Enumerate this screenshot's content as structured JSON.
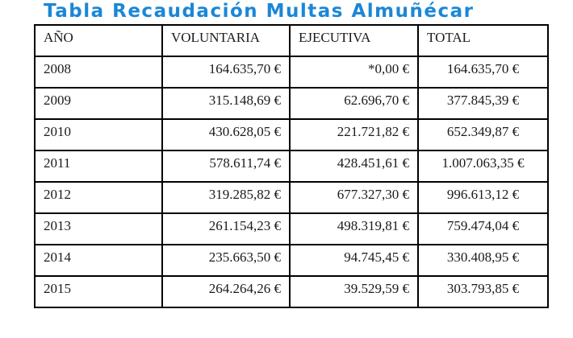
{
  "title_color": "#1b87d6",
  "page_title": "Tabla Recaudación Multas Almuñécar",
  "chart_data": {
    "type": "table",
    "title": "Tabla Recaudación Multas Almuñécar",
    "columns": [
      "AÑO",
      "VOLUNTARIA",
      "EJECUTIVA",
      "TOTAL"
    ],
    "rows": [
      [
        "2008",
        "164.635,70 €",
        "*0,00 €",
        "164.635,70 €"
      ],
      [
        "2009",
        "315.148,69 €",
        "62.696,70 €",
        "377.845,39 €"
      ],
      [
        "2010",
        "430.628,05 €",
        "221.721,82 €",
        "652.349,87 €"
      ],
      [
        "2011",
        "578.611,74 €",
        "428.451,61 €",
        "1.007.063,35 €"
      ],
      [
        "2012",
        "319.285,82 €",
        "677.327,30 €",
        "996.613,12 €"
      ],
      [
        "2013",
        "261.154,23 €",
        "498.319,81 €",
        "759.474,04 €"
      ],
      [
        "2014",
        "235.663,50 €",
        "94.745,45 €",
        "330.408,95 €"
      ],
      [
        "2015",
        "264.264,26 €",
        "39.529,59 €",
        "303.793,85 €"
      ]
    ]
  }
}
